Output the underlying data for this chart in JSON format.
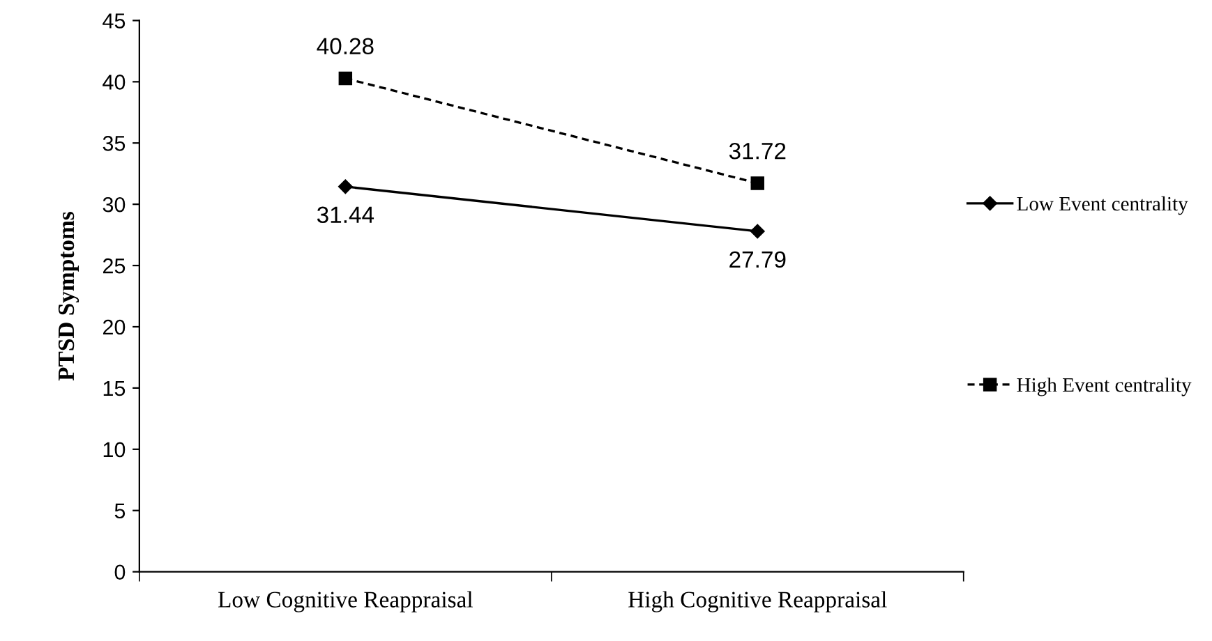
{
  "chart_data": {
    "type": "line",
    "ylabel": "PTSD Symptoms",
    "categories": [
      "Low Cognitive Reappraisal",
      "High Cognitive Reappraisal"
    ],
    "series": [
      {
        "name": "Low Event centrality",
        "color": "#000000",
        "values": [
          31.44,
          27.79
        ],
        "marker": "diamond",
        "line_style": "solid"
      },
      {
        "name": "High Event centrality",
        "color": "#000000",
        "values": [
          40.28,
          31.72
        ],
        "marker": "square",
        "line_style": "dashed"
      }
    ],
    "ylim": [
      0,
      45
    ],
    "yticks": [
      0,
      5,
      10,
      15,
      20,
      25,
      30,
      35,
      40,
      45
    ],
    "data_labels": true,
    "grid": false,
    "legend": "right"
  }
}
